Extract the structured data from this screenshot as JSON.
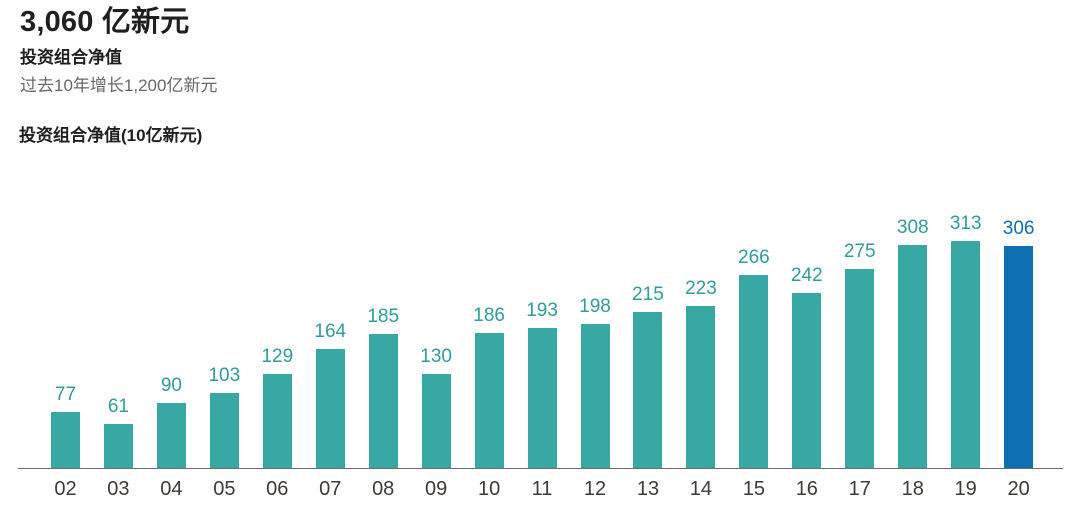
{
  "header": {
    "headline": "3,060 亿新元",
    "subtitle": "投资组合净值",
    "growth_note": "过去10年增长1,200亿新元"
  },
  "chart_data": {
    "type": "bar",
    "title": "投资组合净值(10亿新元)",
    "xlabel": "",
    "ylabel": "投资组合净值(10亿新元)",
    "unit": "10亿新元",
    "categories": [
      "02",
      "03",
      "04",
      "05",
      "06",
      "07",
      "08",
      "09",
      "10",
      "11",
      "12",
      "13",
      "14",
      "15",
      "16",
      "17",
      "18",
      "19",
      "20"
    ],
    "values": [
      77,
      61,
      90,
      103,
      129,
      164,
      185,
      130,
      186,
      193,
      198,
      215,
      223,
      266,
      242,
      275,
      308,
      313,
      306
    ],
    "ylim": [
      0,
      330
    ],
    "grid": false,
    "legend": "none",
    "data_labels": true,
    "colors": {
      "bar": "#38a8a4",
      "bar_highlight": "#0e6fb1",
      "value_label": "#2e9d9b",
      "value_label_highlight": "#0e6fb1",
      "tick_label": "#3e3a36",
      "axis_line": "#6e6e6e"
    },
    "highlight_index": 18
  }
}
